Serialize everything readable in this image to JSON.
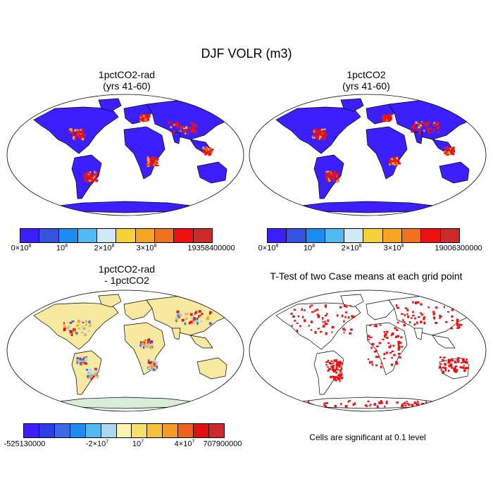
{
  "title": "DJF VOLR (m3)",
  "panels": {
    "top_left": {
      "title_line1": "1pctCO2-rad",
      "title_line2": "(yrs 41-60)",
      "colorbar": {
        "colors": [
          "#3b1fff",
          "#3653e0",
          "#1c8cf0",
          "#52b9f2",
          "#cfe9f7",
          "#f5d23a",
          "#f5a623",
          "#f0721e",
          "#ee1111",
          "#cc2a2a"
        ],
        "labels": [
          {
            "base": "0×10",
            "exp": "8"
          },
          {
            "base": "10",
            "exp": "8"
          },
          {
            "base": "2×10",
            "exp": "8"
          },
          {
            "base": "3×10",
            "exp": "8"
          },
          {
            "base": "19358400000",
            "exp": ""
          }
        ]
      }
    },
    "top_right": {
      "title_line1": "1pctCO2",
      "title_line2": "(yrs 41-60)",
      "colorbar": {
        "colors": [
          "#3b1fff",
          "#3653e0",
          "#1c8cf0",
          "#52b9f2",
          "#cfe9f7",
          "#f5d23a",
          "#f5a623",
          "#f0721e",
          "#ee1111",
          "#cc2a2a"
        ],
        "labels": [
          {
            "base": "0×10",
            "exp": "8"
          },
          {
            "base": "10",
            "exp": "8"
          },
          {
            "base": "2×10",
            "exp": "8"
          },
          {
            "base": "3×10",
            "exp": "8"
          },
          {
            "base": "19006300000",
            "exp": ""
          }
        ]
      }
    },
    "bottom_left": {
      "title_line1": "1pctCO2-rad",
      "title_line2": "- 1pctCO2",
      "colorbar": {
        "colors": [
          "#3b1fff",
          "#2a3ee8",
          "#3b6ae6",
          "#1c8cf0",
          "#52b9f2",
          "#a8d8f0",
          "#fbf3b0",
          "#f7e06a",
          "#f5c23a",
          "#f59a23",
          "#f0601e",
          "#e01010",
          "#cc2a2a"
        ],
        "labels": [
          {
            "base": "-525130000",
            "exp": ""
          },
          {
            "base": "-2×10",
            "exp": "7"
          },
          {
            "base": "10",
            "exp": "7"
          },
          {
            "base": "4×10",
            "exp": "7"
          },
          {
            "base": "707900000",
            "exp": ""
          }
        ]
      }
    },
    "bottom_right": {
      "title": "T-Test of two Case means at each grid point",
      "note": "Cells are significant at 0.1 level"
    }
  },
  "palette": {
    "ocean": "#ffffff",
    "land_low": "#3b1fff",
    "high_red": "#ee1111",
    "diff_land": "#f7e9a0",
    "diff_blue": "#a8d8f0",
    "coast": "#000000"
  }
}
